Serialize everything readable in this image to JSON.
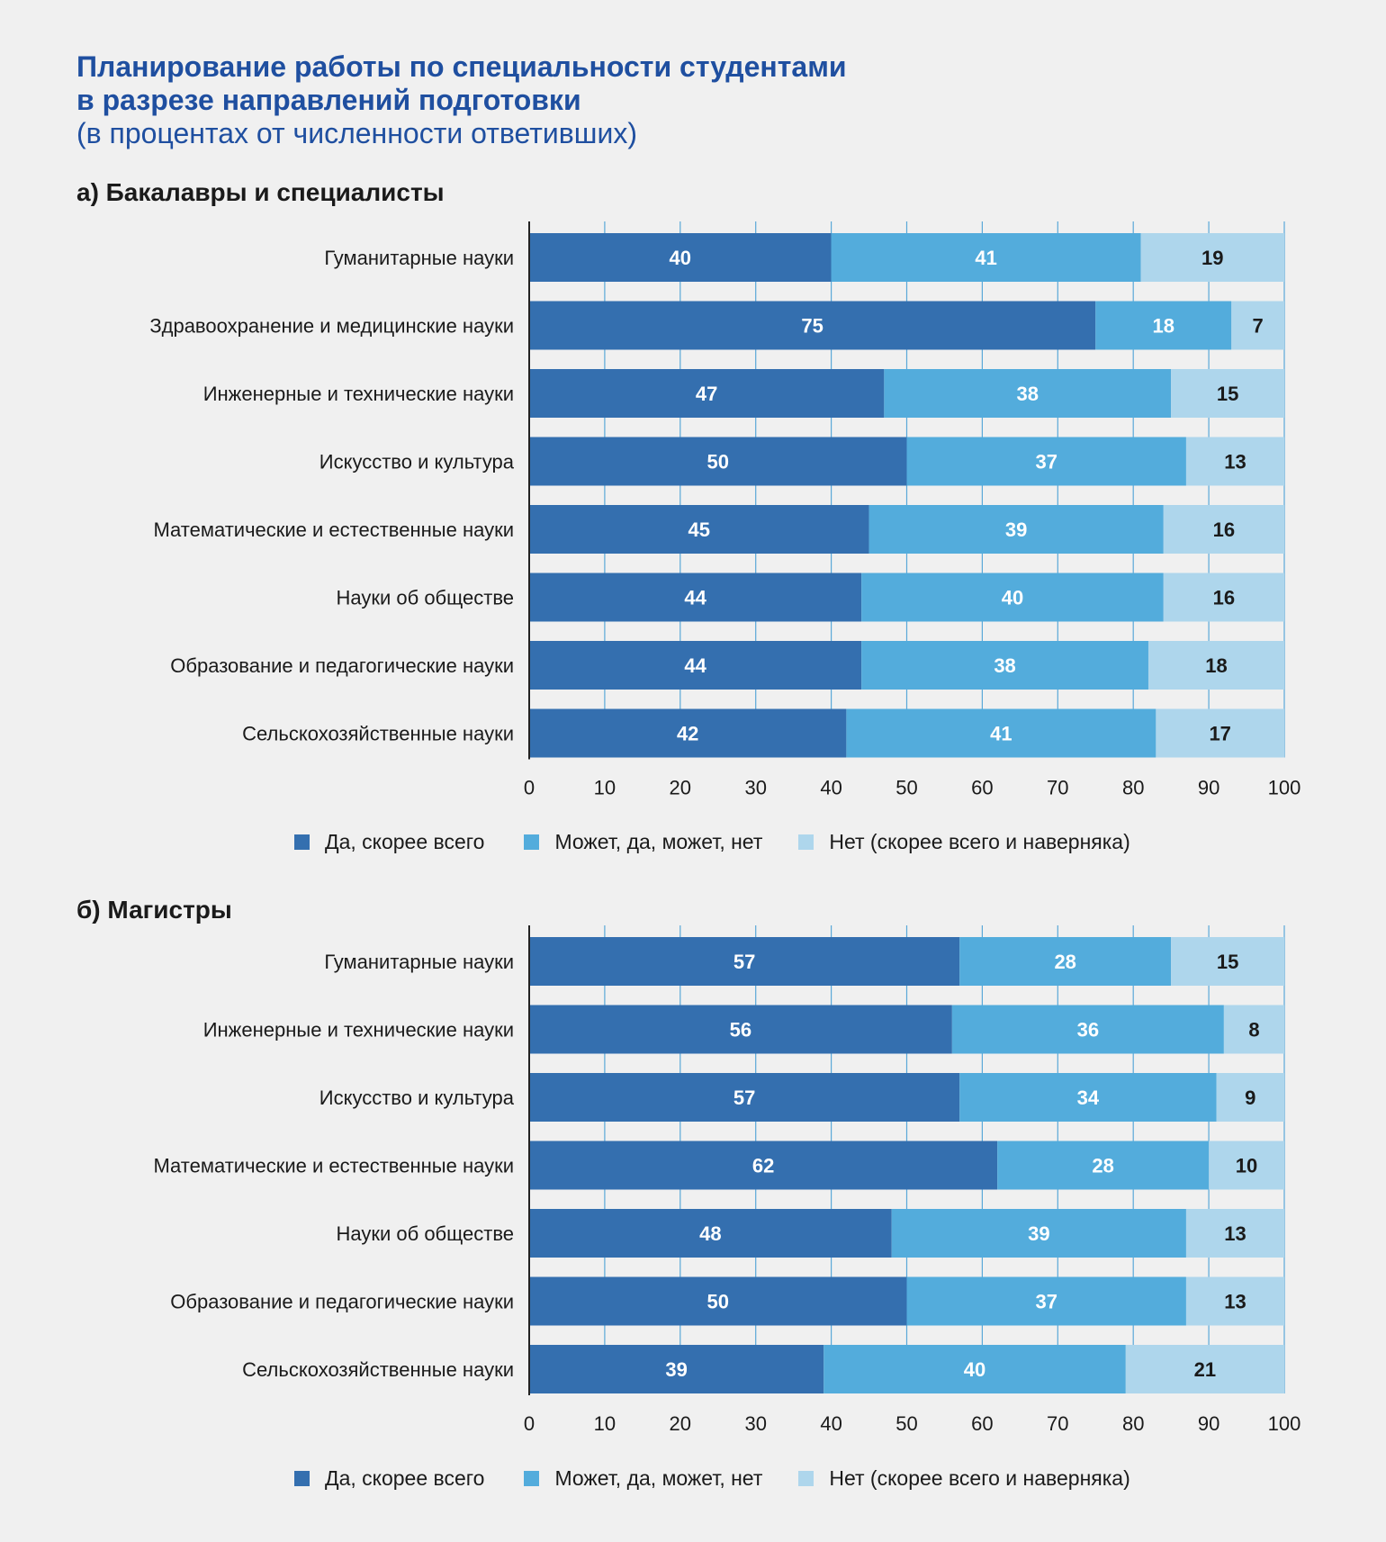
{
  "title_line1": "Планирование работы по специальности студентами",
  "title_line2": "в разрезе направлений подготовки",
  "subtitle": "(в процентах от численности ответивших)",
  "colors": {
    "yes": "#346faf",
    "maybe": "#53acdc",
    "no": "#aed6ec",
    "axis": "#222222"
  },
  "legend": [
    {
      "label": "Да, скорее всего",
      "color": "#346faf"
    },
    {
      "label": "Может, да, может, нет",
      "color": "#53acdc"
    },
    {
      "label": "Нет (скорее всего и наверняка)",
      "color": "#aed6ec"
    }
  ],
  "chart_data": [
    {
      "type": "bar",
      "orientation": "horizontal",
      "stacked": true,
      "title": "а) Бакалавры и специалисты",
      "xlim": [
        0,
        100
      ],
      "xticks": [
        0,
        10,
        20,
        30,
        40,
        50,
        60,
        70,
        80,
        90,
        100
      ],
      "grid": true,
      "legend_position": "bottom",
      "categories": [
        "Гуманитарные науки",
        "Здравоохранение и медицинские науки",
        "Инженерные и технические науки",
        "Искусство и культура",
        "Математические и естественные науки",
        "Науки об обществе",
        "Образование и педагогические науки",
        "Сельскохозяйственные науки"
      ],
      "series": [
        {
          "name": "Да, скорее всего",
          "values": [
            40,
            75,
            47,
            50,
            45,
            44,
            44,
            42
          ]
        },
        {
          "name": "Может, да, может, нет",
          "values": [
            41,
            18,
            38,
            37,
            39,
            40,
            38,
            41
          ]
        },
        {
          "name": "Нет (скорее всего и наверняка)",
          "values": [
            19,
            7,
            15,
            13,
            16,
            16,
            18,
            17
          ]
        }
      ]
    },
    {
      "type": "bar",
      "orientation": "horizontal",
      "stacked": true,
      "title": "б) Магистры",
      "xlim": [
        0,
        100
      ],
      "xticks": [
        0,
        10,
        20,
        30,
        40,
        50,
        60,
        70,
        80,
        90,
        100
      ],
      "grid": true,
      "legend_position": "bottom",
      "categories": [
        "Гуманитарные науки",
        "Инженерные и технические науки",
        "Искусство и культура",
        "Математические и естественные науки",
        "Науки об обществе",
        "Образование и педагогические науки",
        "Сельскохозяйственные науки"
      ],
      "series": [
        {
          "name": "Да, скорее всего",
          "values": [
            57,
            56,
            57,
            62,
            48,
            50,
            39
          ]
        },
        {
          "name": "Может, да, может, нет",
          "values": [
            28,
            36,
            34,
            28,
            39,
            37,
            40
          ]
        },
        {
          "name": "Нет (скорее всего и наверняка)",
          "values": [
            15,
            8,
            9,
            10,
            13,
            13,
            21
          ]
        }
      ]
    }
  ]
}
